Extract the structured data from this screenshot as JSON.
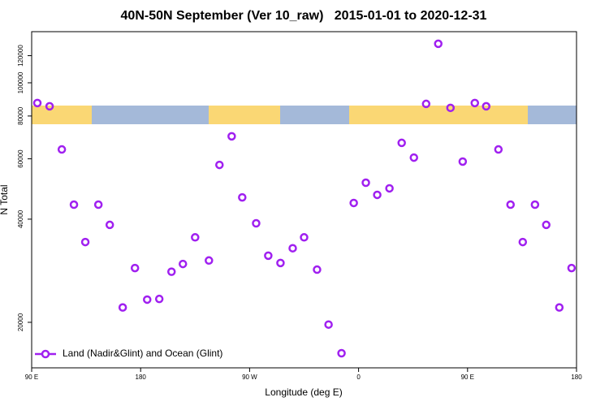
{
  "chart_data": {
    "type": "scatter",
    "title": "40N-50N September (Ver 10_raw)   2015-01-01 to 2020-12-31",
    "x_label": "Longitude (deg E)",
    "y_label": "N Total",
    "xlim": [
      90,
      540
    ],
    "xticks": [
      {
        "value": 90,
        "label": "90 E"
      },
      180,
      {
        "value": 270,
        "label": "90 W"
      },
      {
        "value": 360,
        "label": "0"
      },
      {
        "value": 450,
        "label": "90 E"
      },
      {
        "value": 540,
        "label": "180"
      }
    ],
    "ylim": [
      14730,
      141000
    ],
    "yticks": [
      20000,
      40000,
      60000,
      80000,
      100000,
      120000
    ],
    "y_log": true,
    "legend": "bottom-left",
    "series": [
      {
        "name": "Land (Nadir&Glint) and Ocean (Glint)",
        "color": "#a020f0",
        "x": [
          94.7,
          104.8,
          114.9,
          124.9,
          134.3,
          145.1,
          154.5,
          165.2,
          175.3,
          185.4,
          195.4,
          205.5,
          214.9,
          225,
          236.4,
          245.1,
          255.2,
          263.9,
          275.4,
          285.4,
          295.5,
          305.6,
          315,
          325.7,
          335.2,
          345.9,
          356,
          366,
          375.4,
          385.5,
          395.6,
          405.7,
          415.8,
          425.8,
          435.9,
          446,
          456,
          465.4,
          475.5,
          485.5,
          495.6,
          505.7,
          515,
          525.8,
          535.9
        ],
        "values": [
          87300,
          85400,
          63900,
          44100,
          34300,
          44100,
          38500,
          22100,
          28800,
          23300,
          23400,
          28100,
          29600,
          35400,
          30300,
          57600,
          69800,
          46300,
          38900,
          31300,
          29800,
          32900,
          35400,
          28500,
          19700,
          16250,
          44600,
          51100,
          47100,
          49200,
          66800,
          60500,
          86800,
          130000,
          84500,
          58900,
          87300,
          85400,
          63900,
          44100,
          34300,
          44100,
          38500,
          22100,
          28800
        ]
      }
    ]
  }
}
